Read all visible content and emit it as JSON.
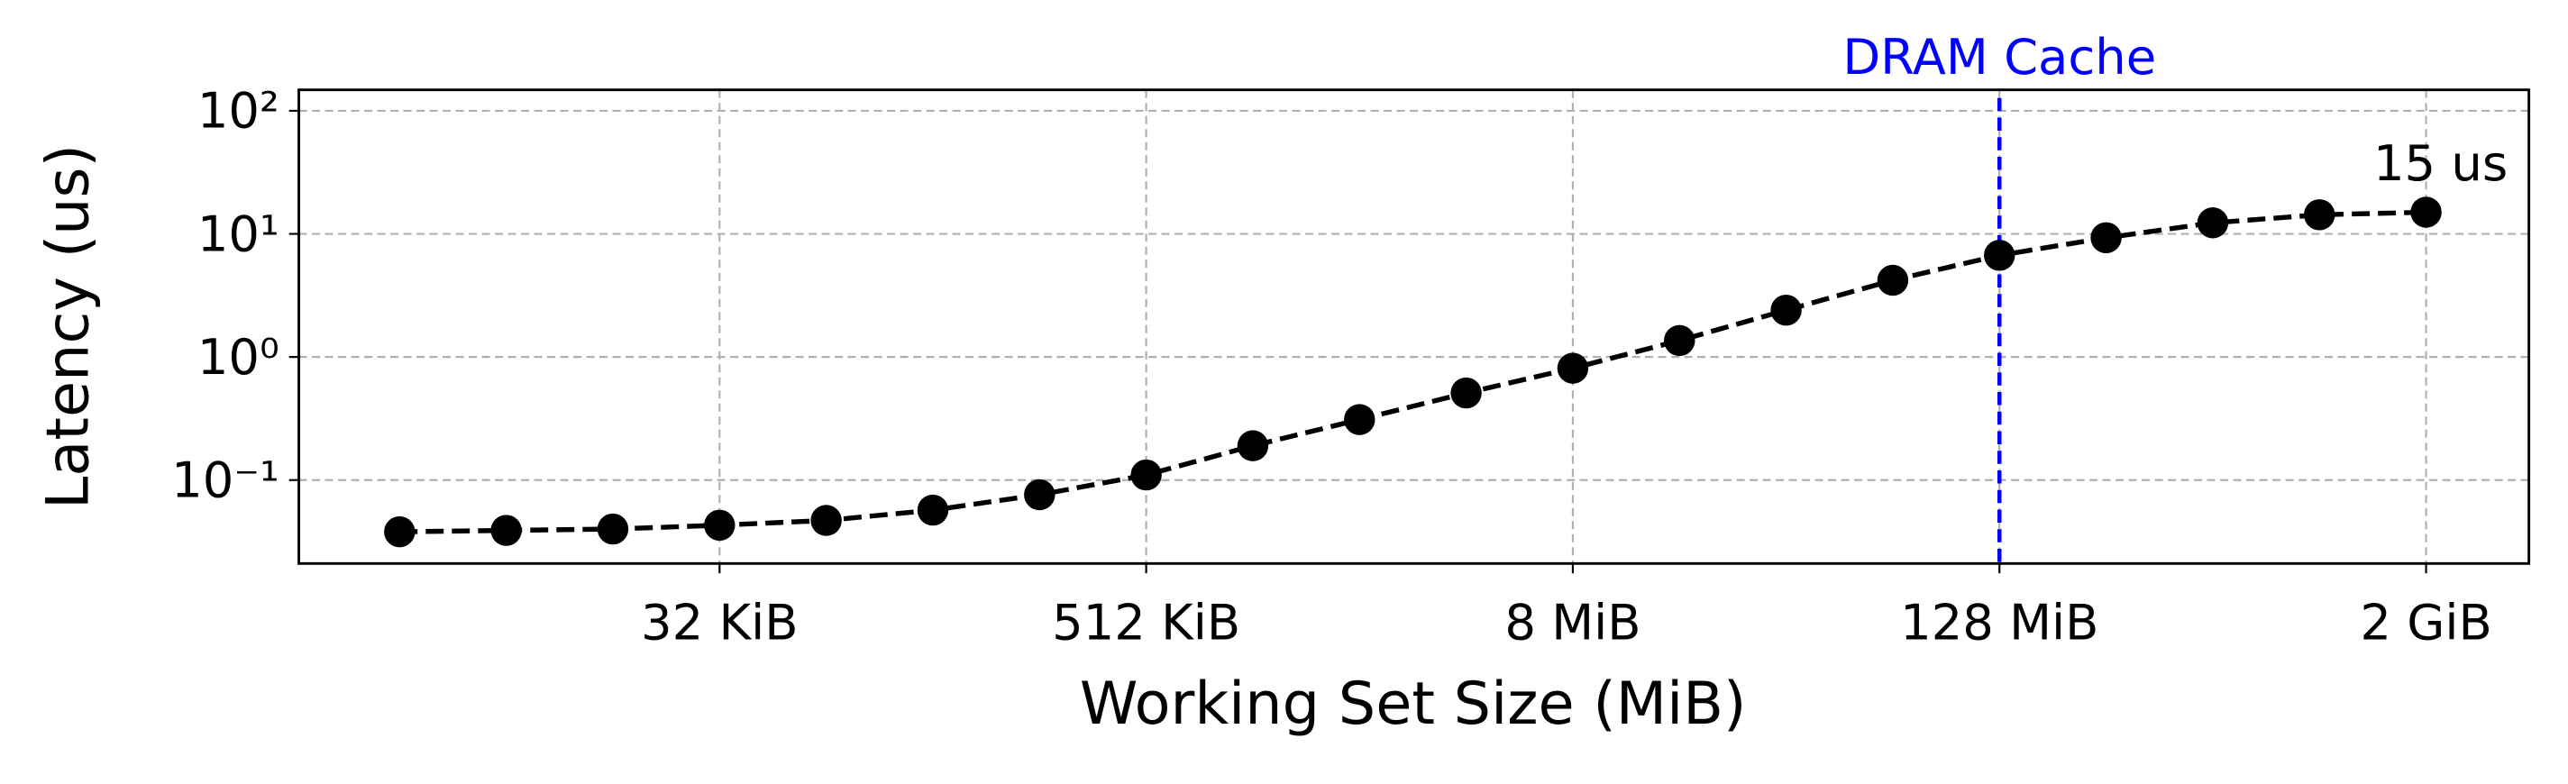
{
  "chart_data": {
    "type": "line",
    "xlabel": "Working Set Size (MiB)",
    "ylabel": "Latency (us)",
    "x": [
      0.00390625,
      0.0078125,
      0.015625,
      0.03125,
      0.0625,
      0.125,
      0.25,
      0.5,
      1,
      2,
      4,
      8,
      16,
      32,
      64,
      128,
      256,
      512,
      1024,
      2048
    ],
    "series": [
      {
        "color": "#000000",
        "values": [
          0.038,
          0.039,
          0.04,
          0.043,
          0.047,
          0.057,
          0.076,
          0.11,
          0.19,
          0.31,
          0.51,
          0.81,
          1.36,
          2.4,
          4.2,
          6.7,
          9.3,
          12.3,
          14.3,
          15
        ]
      }
    ],
    "xscale": "log",
    "yscale": "log",
    "xlim": [
      0.00203,
      3995
    ],
    "ylim": [
      0.021,
      148
    ],
    "xticks": [
      {
        "value": 0.03125,
        "label": "32 KiB"
      },
      {
        "value": 0.5,
        "label": "512 KiB"
      },
      {
        "value": 8,
        "label": "8 MiB"
      },
      {
        "value": 128,
        "label": "128 MiB"
      },
      {
        "value": 2048,
        "label": "2 GiB"
      }
    ],
    "yticks": [
      {
        "value": 0.1,
        "label": "10⁻¹"
      },
      {
        "value": 1,
        "label": "10⁰"
      },
      {
        "value": 10,
        "label": "10¹"
      },
      {
        "value": 100,
        "label": "10²"
      }
    ],
    "grid": true,
    "vline": {
      "x": 128,
      "label": "DRAM Cache",
      "color": "#0000ff"
    },
    "annotations": [
      {
        "text": "15 us",
        "x": 2048,
        "y": 15
      }
    ]
  }
}
